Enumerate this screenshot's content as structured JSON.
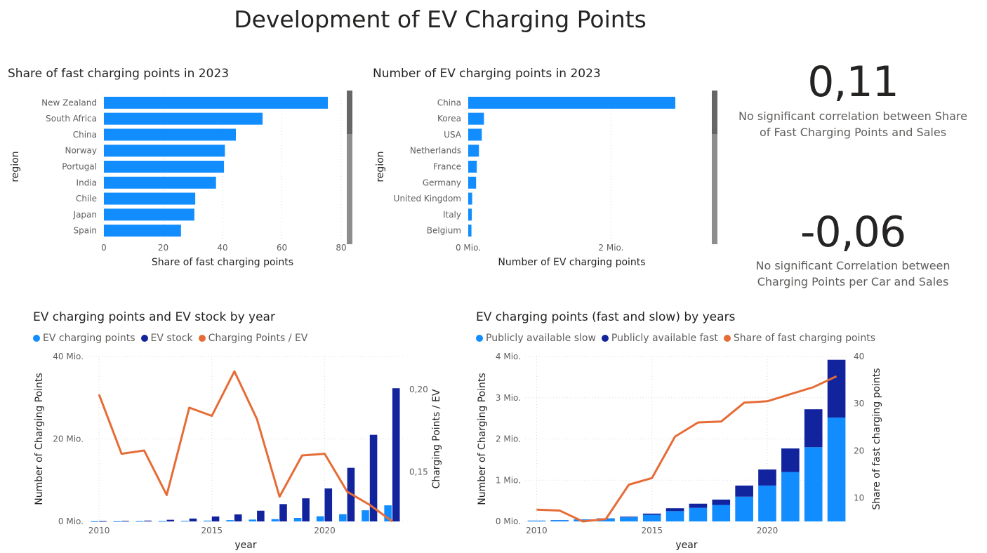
{
  "page": {
    "title": "Development of EV Charging Points"
  },
  "colors": {
    "light_blue": "#118dff",
    "dark_blue": "#12239e",
    "orange": "#e66c37",
    "grid": "#d9d9d9",
    "axis_text": "#605e5c"
  },
  "kpis": [
    {
      "value": "0,11",
      "label_line1": "No significant correlation between Share",
      "label_line2": "of Fast Charging Points and Sales"
    },
    {
      "value": "-0,06",
      "label_line1": "No significant Correlation between",
      "label_line2": "Charging Points per Car and Sales"
    }
  ],
  "chart_data": [
    {
      "type": "bar",
      "orientation": "horizontal",
      "title": "Share of fast charging points in 2023",
      "xlabel": "Share of fast charging points",
      "ylabel": "region",
      "categories": [
        "New Zealand",
        "South Africa",
        "China",
        "Norway",
        "Portugal",
        "India",
        "Chile",
        "Japan",
        "Spain"
      ],
      "values": [
        75.5,
        53.5,
        44.5,
        40.8,
        40.5,
        37.8,
        30.8,
        30.5,
        26.0
      ],
      "xlim": [
        0,
        80
      ],
      "xticks": [
        "0",
        "20",
        "40",
        "60",
        "80"
      ],
      "xtick_values": [
        0,
        20,
        40,
        60,
        80
      ],
      "grid": true
    },
    {
      "type": "bar",
      "orientation": "horizontal",
      "title": "Number of EV charging points in 2023",
      "xlabel": "Number of EV charging points",
      "ylabel": "region",
      "categories": [
        "China",
        "Korea",
        "USA",
        "Netherlands",
        "France",
        "Germany",
        "United Kingdom",
        "Italy",
        "Belgium"
      ],
      "values": [
        2.9,
        0.22,
        0.19,
        0.15,
        0.12,
        0.11,
        0.055,
        0.05,
        0.045
      ],
      "xlim": [
        0,
        2.9
      ],
      "xticks": [
        "0 Mio.",
        "2 Mio."
      ],
      "xtick_values": [
        0,
        2
      ],
      "grid": true
    },
    {
      "type": "bar",
      "title": "EV charging points and EV stock by year",
      "xlabel": "year",
      "ylabel": "Number of Charging Points",
      "y2label": "Charging Points / EV",
      "x": [
        2010,
        2011,
        2012,
        2013,
        2014,
        2015,
        2016,
        2017,
        2018,
        2019,
        2020,
        2021,
        2022,
        2023
      ],
      "series": [
        {
          "name": "EV charging points",
          "kind": "bar",
          "values": [
            0.02,
            0.04,
            0.08,
            0.1,
            0.15,
            0.2,
            0.32,
            0.45,
            0.55,
            0.85,
            1.25,
            1.75,
            2.7,
            3.9
          ]
        },
        {
          "name": "EV stock",
          "kind": "bar",
          "values": [
            0.1,
            0.15,
            0.2,
            0.4,
            0.7,
            1.2,
            1.7,
            2.6,
            4.2,
            5.6,
            8.0,
            13.0,
            21.0,
            32.3
          ]
        },
        {
          "name": "Charging Points / EV",
          "kind": "line",
          "axis": "secondary",
          "values": [
            0.197,
            0.161,
            0.163,
            0.136,
            0.189,
            0.184,
            0.211,
            0.182,
            0.135,
            0.16,
            0.161,
            0.138,
            0.13,
            0.12
          ]
        }
      ],
      "ylim": [
        0,
        40
      ],
      "yticks": [
        "0 Mio.",
        "20 Mio.",
        "40 Mio."
      ],
      "ytick_values": [
        0,
        20,
        40
      ],
      "y2lim": [
        0.12,
        0.22
      ],
      "y2ticks": [
        "0,15",
        "0,20"
      ],
      "y2tick_values": [
        0.15,
        0.2
      ],
      "xticks": [
        "2010",
        "2015",
        "2020"
      ],
      "xtick_values": [
        2010,
        2015,
        2020
      ],
      "legend": "top-left",
      "grid": true
    },
    {
      "type": "bar",
      "stacked": true,
      "title": "EV charging points (fast and slow) by years",
      "xlabel": "year",
      "ylabel": "Number of Charging Points",
      "y2label": "Share of fast charging points",
      "x": [
        2010,
        2011,
        2012,
        2013,
        2014,
        2015,
        2016,
        2017,
        2018,
        2019,
        2020,
        2021,
        2022,
        2023
      ],
      "series": [
        {
          "name": "Publicly available slow",
          "kind": "bar",
          "values": [
            0.018,
            0.03,
            0.05,
            0.07,
            0.1,
            0.16,
            0.25,
            0.33,
            0.4,
            0.6,
            0.87,
            1.2,
            1.8,
            2.52
          ]
        },
        {
          "name": "Publicly available fast",
          "kind": "bar",
          "values": [
            0.002,
            0.003,
            0.0,
            0.005,
            0.015,
            0.03,
            0.07,
            0.1,
            0.13,
            0.27,
            0.39,
            0.57,
            0.92,
            1.4
          ]
        },
        {
          "name": "Share of fast charging points",
          "kind": "line",
          "axis": "secondary",
          "values": [
            7.5,
            7.3,
            5.0,
            5.5,
            12.8,
            14.2,
            23.0,
            26.0,
            26.2,
            30.2,
            30.5,
            32.0,
            33.5,
            35.8
          ]
        }
      ],
      "ylim": [
        0,
        4
      ],
      "yticks": [
        "0 Mio.",
        "1 Mio.",
        "2 Mio.",
        "3 Mio.",
        "4 Mio."
      ],
      "ytick_values": [
        0,
        1,
        2,
        3,
        4
      ],
      "y2lim": [
        5,
        40
      ],
      "y2ticks": [
        "10",
        "20",
        "30",
        "40"
      ],
      "y2tick_values": [
        10,
        20,
        30,
        40
      ],
      "xticks": [
        "2010",
        "2015",
        "2020"
      ],
      "xtick_values": [
        2010,
        2015,
        2020
      ],
      "legend": "top-left",
      "grid": true
    }
  ]
}
